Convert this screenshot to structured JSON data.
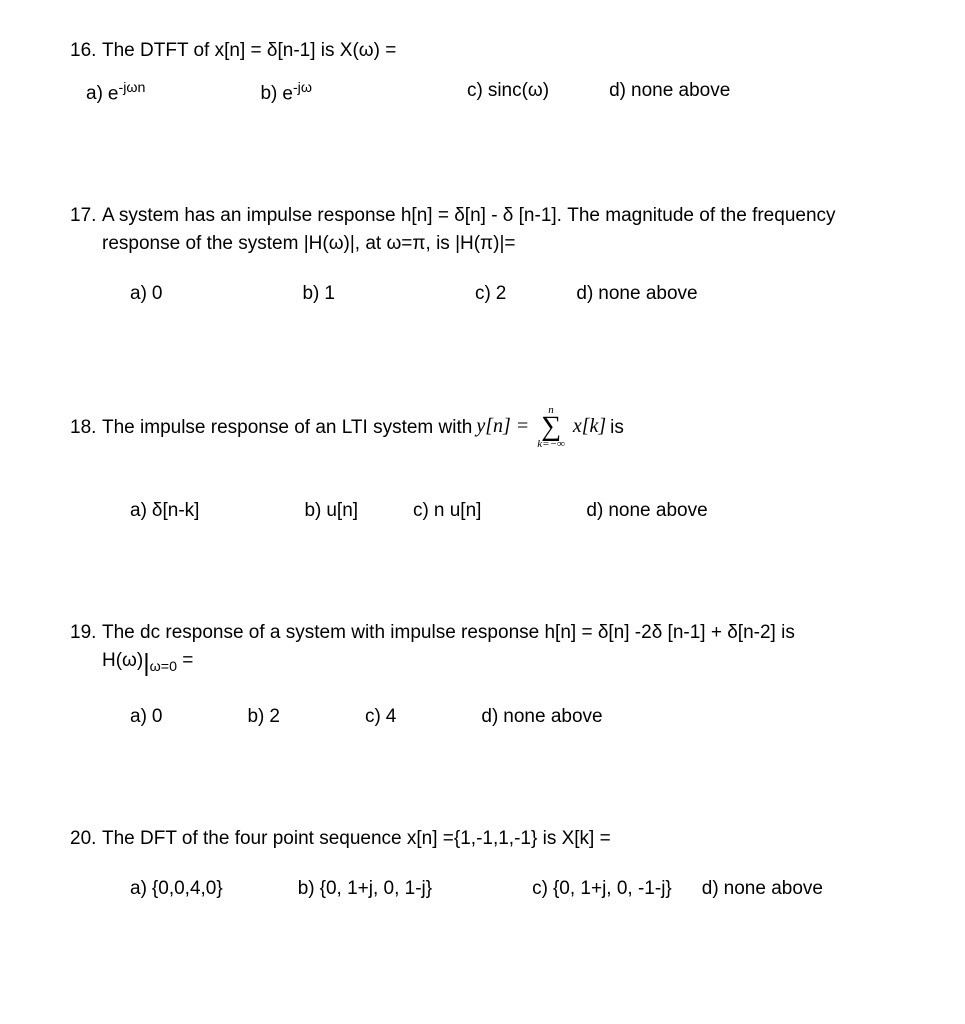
{
  "q16": {
    "number": "16.",
    "stem": "The DTFT of x[n] = δ[n-1]   is  X(ω) =",
    "a_label": "a)",
    "a_text_html": "e<sup>-jωn</sup>",
    "b_label": "b)",
    "b_text_html": "e<sup>-jω</sup>",
    "c_label": "c)",
    "c_text": "sinc(ω)",
    "d_label": "d)",
    "d_text": "none above"
  },
  "q17": {
    "number": "17.",
    "stem1": "A system has an impulse response h[n] =  δ[n] - δ [n-1].  The magnitude of the frequency",
    "stem2": "response of the system |H(ω)|, at  ω=π, is |H(π)|=",
    "a_label": "a)",
    "a_text": "0",
    "b_label": "b)",
    "b_text": "1",
    "c_label": "c)",
    "c_text": "2",
    "d_label": "d)",
    "d_text": "none above"
  },
  "q18": {
    "number": "18.",
    "stem_pre": "The impulse response of an LTI system with ",
    "stem_yn": "y[n] = ",
    "sum_top": "n",
    "sum_bot": "k=−∞",
    "stem_xk": "x[k]",
    "stem_post": " is",
    "a_label": "a)",
    "a_text": "δ[n-k]",
    "b_label": "b)",
    "b_text": "u[n]",
    "c_label": "c)",
    "c_text": "n u[n]",
    "d_label": "d)",
    "d_text": "none above"
  },
  "q19": {
    "number": "19.",
    "stem1": "The dc response of a system with impulse response h[n] = δ[n] -2δ [n-1] + δ[n-2]   is",
    "stem2_pre": "H(ω)",
    "stem2_sub": "ω=0",
    "stem2_post": " =",
    "a_label": "a)",
    "a_text": "0",
    "b_label": "b)",
    "b_text": "2",
    "c_label": "c)",
    "c_text": "4",
    "d_label": "d)",
    "d_text": "none above"
  },
  "q20": {
    "number": "20.",
    "stem": "The DFT of the four point sequence x[n] ={1,-1,1,-1}   is X[k] =",
    "a_label": "a)",
    "a_text": "{0,0,4,0}",
    "b_label": "b)",
    "b_text": "{0, 1+j, 0, 1-j}",
    "c_label": "c)",
    "c_text": "{0, 1+j, 0, -1-j}",
    "d_label": "d)",
    "d_text": "none above"
  }
}
